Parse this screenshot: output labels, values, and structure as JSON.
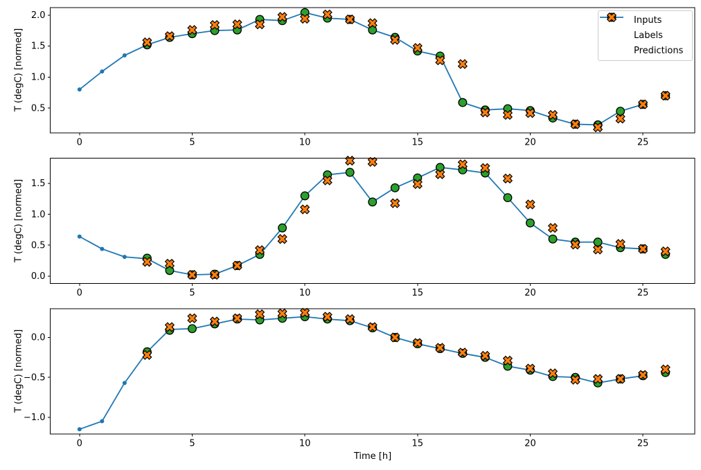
{
  "figure": {
    "xlabel": "Time [h]",
    "ylabel": "T (degC) [normed]",
    "background": "#ffffff",
    "colors": {
      "inputs": "#1f77b4",
      "labels": "#2ca02c",
      "predictions": "#ff7f0e",
      "marker_edge": "#000000",
      "axis": "#000000",
      "text": "#000000",
      "legend_border": "#cccccc"
    },
    "legend": {
      "position": "upper right",
      "entries": [
        {
          "label": "Inputs",
          "marker": "line-dot",
          "color_key": "inputs"
        },
        {
          "label": "Labels",
          "marker": "circle",
          "color_key": "labels"
        },
        {
          "label": "Predictions",
          "marker": "x",
          "color_key": "predictions"
        }
      ]
    }
  },
  "chart_data": [
    {
      "type": "line",
      "subplot": 1,
      "title": "",
      "xlabel": "",
      "ylabel": "T (degC) [normed]",
      "grid": false,
      "xlim": [
        -1.3,
        27.3
      ],
      "ylim": [
        0.1,
        2.12
      ],
      "xticks": [
        0,
        5,
        10,
        15,
        20,
        25
      ],
      "xticklabels": [
        "0",
        "5",
        "10",
        "15",
        "20",
        "25"
      ],
      "yticks": [
        0.5,
        1.0,
        1.5,
        2.0
      ],
      "yticklabels": [
        "0.5",
        "1.0",
        "1.5",
        "2.0"
      ],
      "series": [
        {
          "name": "Inputs",
          "render": "line",
          "marker": "dot",
          "color_key": "inputs",
          "x": [
            0,
            1,
            2,
            3,
            4,
            5,
            6,
            7,
            8,
            9,
            10,
            11,
            12,
            13,
            14,
            15,
            16,
            17,
            18,
            19,
            20,
            21,
            22,
            23,
            24,
            25
          ],
          "y": [
            0.8,
            1.09,
            1.35,
            1.52,
            1.64,
            1.7,
            1.75,
            1.76,
            1.93,
            1.91,
            2.04,
            1.95,
            1.93,
            1.76,
            1.64,
            1.42,
            1.34,
            0.59,
            0.47,
            0.49,
            0.46,
            0.34,
            0.24,
            0.23,
            0.45,
            0.56
          ]
        },
        {
          "name": "Labels",
          "render": "scatter",
          "marker": "circle",
          "color_key": "labels",
          "x": [
            3,
            4,
            5,
            6,
            7,
            8,
            9,
            10,
            11,
            12,
            13,
            14,
            15,
            16,
            17,
            18,
            19,
            20,
            21,
            22,
            23,
            24,
            25,
            26
          ],
          "y": [
            1.52,
            1.64,
            1.7,
            1.75,
            1.76,
            1.93,
            1.91,
            2.04,
            1.95,
            1.93,
            1.76,
            1.64,
            1.42,
            1.34,
            0.59,
            0.47,
            0.49,
            0.46,
            0.34,
            0.24,
            0.23,
            0.45,
            0.56,
            0.7
          ]
        },
        {
          "name": "Predictions",
          "render": "scatter",
          "marker": "x",
          "color_key": "predictions",
          "x": [
            3,
            4,
            5,
            6,
            7,
            8,
            9,
            10,
            11,
            12,
            13,
            14,
            15,
            16,
            17,
            18,
            19,
            20,
            21,
            22,
            23,
            24,
            25,
            26
          ],
          "y": [
            1.56,
            1.66,
            1.76,
            1.84,
            1.85,
            1.85,
            1.97,
            1.94,
            2.01,
            1.93,
            1.87,
            1.6,
            1.47,
            1.27,
            1.21,
            0.43,
            0.39,
            0.42,
            0.39,
            0.24,
            0.19,
            0.33,
            0.56,
            0.7
          ]
        }
      ]
    },
    {
      "type": "line",
      "subplot": 2,
      "title": "",
      "xlabel": "",
      "ylabel": "T (degC) [normed]",
      "grid": false,
      "xlim": [
        -1.3,
        27.3
      ],
      "ylim": [
        -0.12,
        1.91
      ],
      "xticks": [
        0,
        5,
        10,
        15,
        20,
        25
      ],
      "xticklabels": [
        "0",
        "5",
        "10",
        "15",
        "20",
        "25"
      ],
      "yticks": [
        0.0,
        0.5,
        1.0,
        1.5
      ],
      "yticklabels": [
        "0.0",
        "0.5",
        "1.0",
        "1.5"
      ],
      "series": [
        {
          "name": "Inputs",
          "render": "line",
          "marker": "dot",
          "color_key": "inputs",
          "x": [
            0,
            1,
            2,
            3,
            4,
            5,
            6,
            7,
            8,
            9,
            10,
            11,
            12,
            13,
            14,
            15,
            16,
            17,
            18,
            19,
            20,
            21,
            22,
            23,
            24,
            25
          ],
          "y": [
            0.64,
            0.44,
            0.31,
            0.28,
            0.09,
            0.02,
            0.03,
            0.17,
            0.35,
            0.78,
            1.3,
            1.64,
            1.68,
            1.2,
            1.43,
            1.59,
            1.76,
            1.72,
            1.67,
            1.27,
            0.86,
            0.6,
            0.55,
            0.55,
            0.46,
            0.44
          ]
        },
        {
          "name": "Labels",
          "render": "scatter",
          "marker": "circle",
          "color_key": "labels",
          "x": [
            3,
            4,
            5,
            6,
            7,
            8,
            9,
            10,
            11,
            12,
            13,
            14,
            15,
            16,
            17,
            18,
            19,
            20,
            21,
            22,
            23,
            24,
            25,
            26
          ],
          "y": [
            0.29,
            0.09,
            0.02,
            0.03,
            0.17,
            0.35,
            0.78,
            1.3,
            1.64,
            1.68,
            1.2,
            1.43,
            1.59,
            1.76,
            1.72,
            1.67,
            1.27,
            0.86,
            0.6,
            0.55,
            0.55,
            0.46,
            0.44,
            0.35
          ]
        },
        {
          "name": "Predictions",
          "render": "scatter",
          "marker": "x",
          "color_key": "predictions",
          "x": [
            3,
            4,
            5,
            6,
            7,
            8,
            9,
            10,
            11,
            12,
            13,
            14,
            15,
            16,
            17,
            18,
            19,
            20,
            21,
            22,
            23,
            24,
            25,
            26
          ],
          "y": [
            0.23,
            0.2,
            0.02,
            0.02,
            0.17,
            0.42,
            0.6,
            1.08,
            1.55,
            1.87,
            1.85,
            1.18,
            1.49,
            1.65,
            1.81,
            1.75,
            1.58,
            1.16,
            0.78,
            0.51,
            0.43,
            0.52,
            0.44,
            0.4
          ]
        }
      ]
    },
    {
      "type": "line",
      "subplot": 3,
      "title": "",
      "xlabel": "Time [h]",
      "ylabel": "T (degC) [normed]",
      "grid": false,
      "xlim": [
        -1.3,
        27.3
      ],
      "ylim": [
        -1.21,
        0.36
      ],
      "xticks": [
        0,
        5,
        10,
        15,
        20,
        25
      ],
      "xticklabels": [
        "0",
        "5",
        "10",
        "15",
        "20",
        "25"
      ],
      "yticks": [
        0.0,
        -0.5,
        -1.0
      ],
      "yticklabels": [
        "0.0",
        "−0.5",
        "−1.0"
      ],
      "series": [
        {
          "name": "Inputs",
          "render": "line",
          "marker": "dot",
          "color_key": "inputs",
          "x": [
            0,
            1,
            2,
            3,
            4,
            5,
            6,
            7,
            8,
            9,
            10,
            11,
            12,
            13,
            14,
            15,
            16,
            17,
            18,
            19,
            20,
            21,
            22,
            23,
            24,
            25
          ],
          "y": [
            -1.15,
            -1.05,
            -0.57,
            -0.18,
            0.1,
            0.11,
            0.17,
            0.23,
            0.22,
            0.24,
            0.26,
            0.23,
            0.21,
            0.12,
            0.0,
            -0.08,
            -0.14,
            -0.2,
            -0.25,
            -0.36,
            -0.41,
            -0.49,
            -0.5,
            -0.57,
            -0.52,
            -0.48
          ]
        },
        {
          "name": "Labels",
          "render": "scatter",
          "marker": "circle",
          "color_key": "labels",
          "x": [
            3,
            4,
            5,
            6,
            7,
            8,
            9,
            10,
            11,
            12,
            13,
            14,
            15,
            16,
            17,
            18,
            19,
            20,
            21,
            22,
            23,
            24,
            25,
            26
          ],
          "y": [
            -0.18,
            0.09,
            0.11,
            0.17,
            0.23,
            0.22,
            0.24,
            0.26,
            0.23,
            0.21,
            0.12,
            0.0,
            -0.08,
            -0.14,
            -0.2,
            -0.25,
            -0.36,
            -0.41,
            -0.49,
            -0.5,
            -0.57,
            -0.52,
            -0.48,
            -0.44
          ]
        },
        {
          "name": "Predictions",
          "render": "scatter",
          "marker": "x",
          "color_key": "predictions",
          "x": [
            3,
            4,
            5,
            6,
            7,
            8,
            9,
            10,
            11,
            12,
            13,
            14,
            15,
            16,
            17,
            18,
            19,
            20,
            21,
            22,
            23,
            24,
            25,
            26
          ],
          "y": [
            -0.22,
            0.13,
            0.24,
            0.2,
            0.24,
            0.29,
            0.3,
            0.31,
            0.26,
            0.23,
            0.13,
            0.0,
            -0.07,
            -0.13,
            -0.19,
            -0.23,
            -0.29,
            -0.39,
            -0.45,
            -0.53,
            -0.52,
            -0.52,
            -0.47,
            -0.4
          ]
        }
      ]
    }
  ]
}
